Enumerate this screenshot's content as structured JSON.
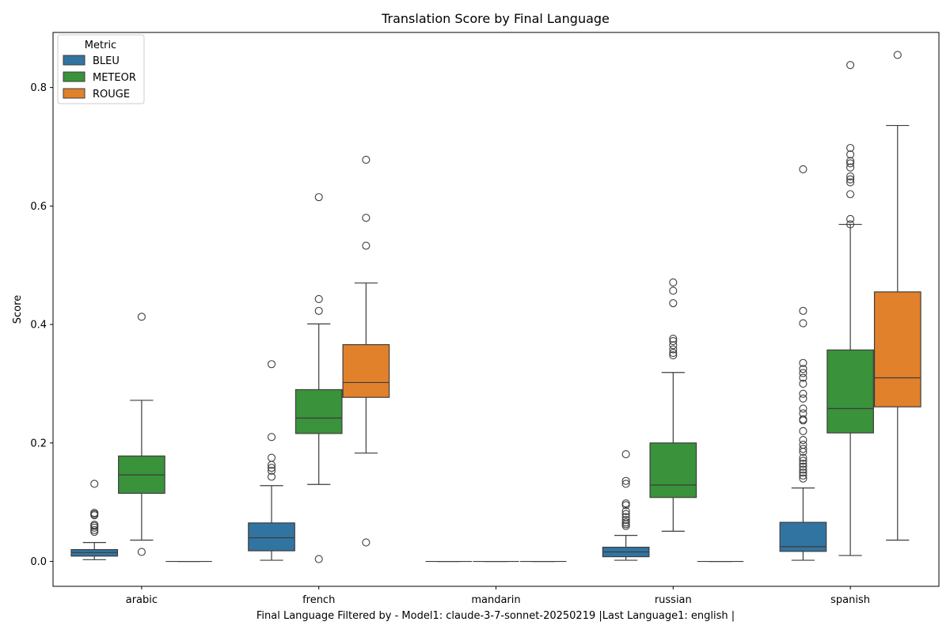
{
  "chart_data": {
    "type": "box",
    "title": "Translation Score by Final Language",
    "xlabel": "Final Language Filtered by - Model1: claude-3-7-sonnet-20250219 |Last Language1: english |",
    "ylabel": "Score",
    "categories": [
      "arabic",
      "french",
      "mandarin",
      "russian",
      "spanish"
    ],
    "ylim": [
      -0.042,
      0.893
    ],
    "yticks": [
      0.0,
      0.2,
      0.4,
      0.6,
      0.8
    ],
    "ytick_labels": [
      "0.0",
      "0.2",
      "0.4",
      "0.6",
      "0.8"
    ],
    "grid": false,
    "legend": {
      "title": "Metric",
      "position": "top-left"
    },
    "series": [
      {
        "name": "BLEU",
        "color": "#3274a1",
        "boxes": [
          {
            "category": "arabic",
            "whislo": 0.003,
            "q1": 0.009,
            "median": 0.015,
            "q3": 0.02,
            "whishi": 0.032,
            "fliers": [
              0.05,
              0.053,
              0.057,
              0.06,
              0.062,
              0.078,
              0.08,
              0.082,
              0.131
            ]
          },
          {
            "category": "french",
            "whislo": 0.002,
            "q1": 0.018,
            "median": 0.04,
            "q3": 0.065,
            "whishi": 0.128,
            "fliers": [
              0.143,
              0.153,
              0.158,
              0.163,
              0.175,
              0.21,
              0.333
            ]
          },
          {
            "category": "mandarin",
            "whislo": 0.0,
            "q1": 0.0,
            "median": 0.0,
            "q3": 0.0,
            "whishi": 0.0,
            "fliers": []
          },
          {
            "category": "russian",
            "whislo": 0.002,
            "q1": 0.008,
            "median": 0.016,
            "q3": 0.024,
            "whishi": 0.044,
            "fliers": [
              0.06,
              0.063,
              0.066,
              0.07,
              0.075,
              0.08,
              0.085,
              0.095,
              0.098,
              0.131,
              0.136,
              0.181
            ]
          },
          {
            "category": "spanish",
            "whislo": 0.002,
            "q1": 0.017,
            "median": 0.025,
            "q3": 0.066,
            "whishi": 0.124,
            "fliers": [
              0.14,
              0.145,
              0.15,
              0.155,
              0.16,
              0.165,
              0.17,
              0.175,
              0.185,
              0.19,
              0.197,
              0.205,
              0.22,
              0.238,
              0.24,
              0.25,
              0.258,
              0.275,
              0.283,
              0.3,
              0.31,
              0.318,
              0.325,
              0.335,
              0.402,
              0.423,
              0.662
            ]
          }
        ]
      },
      {
        "name": "METEOR",
        "color": "#3a923a",
        "boxes": [
          {
            "category": "arabic",
            "whislo": 0.036,
            "q1": 0.115,
            "median": 0.146,
            "q3": 0.178,
            "whishi": 0.272,
            "fliers": [
              0.016,
              0.413
            ]
          },
          {
            "category": "french",
            "whislo": 0.13,
            "q1": 0.216,
            "median": 0.242,
            "q3": 0.29,
            "whishi": 0.401,
            "fliers": [
              0.004,
              0.423,
              0.443,
              0.615
            ]
          },
          {
            "category": "mandarin",
            "whislo": 0.0,
            "q1": 0.0,
            "median": 0.0,
            "q3": 0.0,
            "whishi": 0.0,
            "fliers": []
          },
          {
            "category": "russian",
            "whislo": 0.051,
            "q1": 0.108,
            "median": 0.129,
            "q3": 0.2,
            "whishi": 0.319,
            "fliers": [
              0.348,
              0.352,
              0.358,
              0.365,
              0.372,
              0.376,
              0.436,
              0.457,
              0.471
            ]
          },
          {
            "category": "spanish",
            "whislo": 0.01,
            "q1": 0.217,
            "median": 0.258,
            "q3": 0.357,
            "whishi": 0.569,
            "fliers": [
              0.569,
              0.578,
              0.62,
              0.64,
              0.645,
              0.65,
              0.665,
              0.672,
              0.676,
              0.687,
              0.698,
              0.838
            ]
          }
        ]
      },
      {
        "name": "ROUGE",
        "color": "#e1812c",
        "boxes": [
          {
            "category": "arabic",
            "whislo": 0.0,
            "q1": 0.0,
            "median": 0.0,
            "q3": 0.0,
            "whishi": 0.0,
            "fliers": []
          },
          {
            "category": "french",
            "whislo": 0.183,
            "q1": 0.277,
            "median": 0.302,
            "q3": 0.366,
            "whishi": 0.47,
            "fliers": [
              0.032,
              0.533,
              0.58,
              0.678
            ]
          },
          {
            "category": "mandarin",
            "whislo": 0.0,
            "q1": 0.0,
            "median": 0.0,
            "q3": 0.0,
            "whishi": 0.0,
            "fliers": []
          },
          {
            "category": "russian",
            "whislo": 0.0,
            "q1": 0.0,
            "median": 0.0,
            "q3": 0.0,
            "whishi": 0.0,
            "fliers": []
          },
          {
            "category": "spanish",
            "whislo": 0.036,
            "q1": 0.261,
            "median": 0.31,
            "q3": 0.455,
            "whishi": 0.736,
            "fliers": [
              0.855
            ]
          }
        ]
      }
    ]
  }
}
